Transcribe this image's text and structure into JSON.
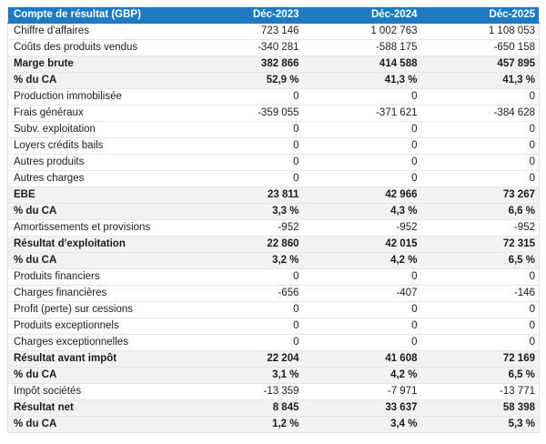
{
  "colors": {
    "header_background": "#1e7ac2",
    "header_text": "#ffffff",
    "total_row_background": "#f2f2f2",
    "row_border": "#e6e6e6",
    "body_text": "#1c1c1c"
  },
  "table": {
    "header": {
      "label": "Compte de résultat (GBP)",
      "columns": [
        "Déc-2023",
        "Déc-2024",
        "Déc-2025"
      ]
    },
    "rows": [
      {
        "label": "Chiffre d'affaires",
        "values": [
          "723 146",
          "1 002 763",
          "1 108 053"
        ],
        "bold": false
      },
      {
        "label": "Coûts des produits vendus",
        "values": [
          "-340 281",
          "-588 175",
          "-650 158"
        ],
        "bold": false
      },
      {
        "label": "Marge brute",
        "values": [
          "382 866",
          "414 588",
          "457 895"
        ],
        "bold": true
      },
      {
        "label": "% du CA",
        "values": [
          "52,9 %",
          "41,3 %",
          "41,3 %"
        ],
        "bold": true
      },
      {
        "label": "Production immobilisée",
        "values": [
          "0",
          "0",
          "0"
        ],
        "bold": false
      },
      {
        "label": "Frais généraux",
        "values": [
          "-359 055",
          "-371 621",
          "-384 628"
        ],
        "bold": false
      },
      {
        "label": "Subv. exploitation",
        "values": [
          "0",
          "0",
          "0"
        ],
        "bold": false
      },
      {
        "label": "Loyers crédits bails",
        "values": [
          "0",
          "0",
          "0"
        ],
        "bold": false
      },
      {
        "label": "Autres produits",
        "values": [
          "0",
          "0",
          "0"
        ],
        "bold": false
      },
      {
        "label": "Autres charges",
        "values": [
          "0",
          "0",
          "0"
        ],
        "bold": false
      },
      {
        "label": "EBE",
        "values": [
          "23 811",
          "42 966",
          "73 267"
        ],
        "bold": true
      },
      {
        "label": "% du CA",
        "values": [
          "3,3 %",
          "4,3 %",
          "6,6 %"
        ],
        "bold": true
      },
      {
        "label": "Amortissements et provisions",
        "values": [
          "-952",
          "-952",
          "-952"
        ],
        "bold": false
      },
      {
        "label": "Résultat d'exploitation",
        "values": [
          "22 860",
          "42 015",
          "72 315"
        ],
        "bold": true
      },
      {
        "label": "% du CA",
        "values": [
          "3,2 %",
          "4,2 %",
          "6,5 %"
        ],
        "bold": true
      },
      {
        "label": "Produits financiers",
        "values": [
          "0",
          "0",
          "0"
        ],
        "bold": false
      },
      {
        "label": "Charges financières",
        "values": [
          "-656",
          "-407",
          "-146"
        ],
        "bold": false
      },
      {
        "label": "Profit (perte) sur cessions",
        "values": [
          "0",
          "0",
          "0"
        ],
        "bold": false
      },
      {
        "label": "Produits exceptionnels",
        "values": [
          "0",
          "0",
          "0"
        ],
        "bold": false
      },
      {
        "label": "Charges exceptionnelles",
        "values": [
          "0",
          "0",
          "0"
        ],
        "bold": false
      },
      {
        "label": "Résultat avant impôt",
        "values": [
          "22 204",
          "41 608",
          "72 169"
        ],
        "bold": true
      },
      {
        "label": "% du CA",
        "values": [
          "3,1 %",
          "4,2 %",
          "6,5 %"
        ],
        "bold": true
      },
      {
        "label": "Impôt sociétés",
        "values": [
          "-13 359",
          "-7 971",
          "-13 771"
        ],
        "bold": false
      },
      {
        "label": "Résultat net",
        "values": [
          "8 845",
          "33 637",
          "58 398"
        ],
        "bold": true
      },
      {
        "label": "% du CA",
        "values": [
          "1,2 %",
          "3,4 %",
          "5,3 %"
        ],
        "bold": true
      }
    ]
  },
  "chart_data": {
    "type": "table",
    "title": "Compte de résultat (GBP)",
    "columns": [
      "Déc-2023",
      "Déc-2024",
      "Déc-2025"
    ],
    "rows": [
      {
        "label": "Chiffre d'affaires",
        "values": [
          723146,
          1002763,
          1108053
        ]
      },
      {
        "label": "Coûts des produits vendus",
        "values": [
          -340281,
          -588175,
          -650158
        ]
      },
      {
        "label": "Marge brute",
        "values": [
          382866,
          414588,
          457895
        ]
      },
      {
        "label": "% du CA",
        "values": [
          52.9,
          41.3,
          41.3
        ],
        "unit": "%"
      },
      {
        "label": "Production immobilisée",
        "values": [
          0,
          0,
          0
        ]
      },
      {
        "label": "Frais généraux",
        "values": [
          -359055,
          -371621,
          -384628
        ]
      },
      {
        "label": "Subv. exploitation",
        "values": [
          0,
          0,
          0
        ]
      },
      {
        "label": "Loyers crédits bails",
        "values": [
          0,
          0,
          0
        ]
      },
      {
        "label": "Autres produits",
        "values": [
          0,
          0,
          0
        ]
      },
      {
        "label": "Autres charges",
        "values": [
          0,
          0,
          0
        ]
      },
      {
        "label": "EBE",
        "values": [
          23811,
          42966,
          73267
        ]
      },
      {
        "label": "% du CA",
        "values": [
          3.3,
          4.3,
          6.6
        ],
        "unit": "%"
      },
      {
        "label": "Amortissements et provisions",
        "values": [
          -952,
          -952,
          -952
        ]
      },
      {
        "label": "Résultat d'exploitation",
        "values": [
          22860,
          42015,
          72315
        ]
      },
      {
        "label": "% du CA",
        "values": [
          3.2,
          4.2,
          6.5
        ],
        "unit": "%"
      },
      {
        "label": "Produits financiers",
        "values": [
          0,
          0,
          0
        ]
      },
      {
        "label": "Charges financières",
        "values": [
          -656,
          -407,
          -146
        ]
      },
      {
        "label": "Profit (perte) sur cessions",
        "values": [
          0,
          0,
          0
        ]
      },
      {
        "label": "Produits exceptionnels",
        "values": [
          0,
          0,
          0
        ]
      },
      {
        "label": "Charges exceptionnelles",
        "values": [
          0,
          0,
          0
        ]
      },
      {
        "label": "Résultat avant impôt",
        "values": [
          22204,
          41608,
          72169
        ]
      },
      {
        "label": "% du CA",
        "values": [
          3.1,
          4.2,
          6.5
        ],
        "unit": "%"
      },
      {
        "label": "Impôt sociétés",
        "values": [
          -13359,
          -7971,
          -13771
        ]
      },
      {
        "label": "Résultat net",
        "values": [
          8845,
          33637,
          58398
        ]
      },
      {
        "label": "% du CA",
        "values": [
          1.2,
          3.4,
          5.3
        ],
        "unit": "%"
      }
    ]
  }
}
